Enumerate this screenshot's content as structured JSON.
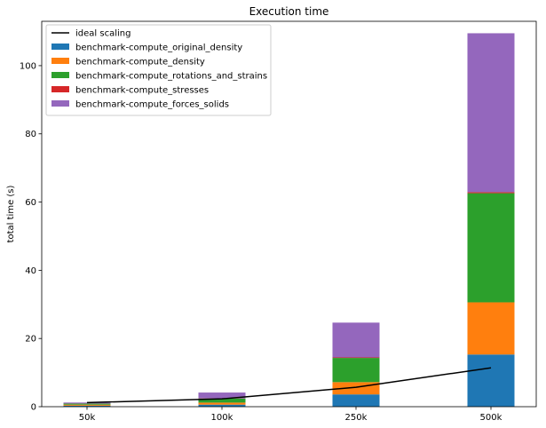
{
  "chart_data": {
    "type": "bar",
    "stacked": true,
    "title": "Execution time",
    "xlabel": "",
    "ylabel": "total time (s)",
    "categories": [
      "50k",
      "100k",
      "250k",
      "500k"
    ],
    "ylim": [
      0,
      113
    ],
    "yticks": [
      0,
      20,
      40,
      60,
      80,
      100
    ],
    "series": [
      {
        "name": "benchmark-compute_original_density",
        "color": "#1f77b4",
        "values": [
          0.3,
          0.6,
          3.6,
          15.3
        ]
      },
      {
        "name": "benchmark-compute_density",
        "color": "#ff7f0e",
        "values": [
          0.3,
          0.6,
          3.6,
          15.3
        ]
      },
      {
        "name": "benchmark-compute_rotations_and_strains",
        "color": "#2ca02c",
        "values": [
          0.3,
          1.2,
          7.1,
          32.0
        ]
      },
      {
        "name": "benchmark-compute_stresses",
        "color": "#d62728",
        "values": [
          0.02,
          0.05,
          0.15,
          0.3
        ]
      },
      {
        "name": "benchmark-compute_forces_solids",
        "color": "#9467bd",
        "values": [
          0.3,
          1.7,
          10.2,
          46.6
        ]
      }
    ],
    "line": {
      "name": "ideal scaling",
      "color": "#000000",
      "values": [
        1.2,
        2.3,
        5.7,
        11.4
      ]
    },
    "legend_position": "top-left",
    "grid": false
  }
}
